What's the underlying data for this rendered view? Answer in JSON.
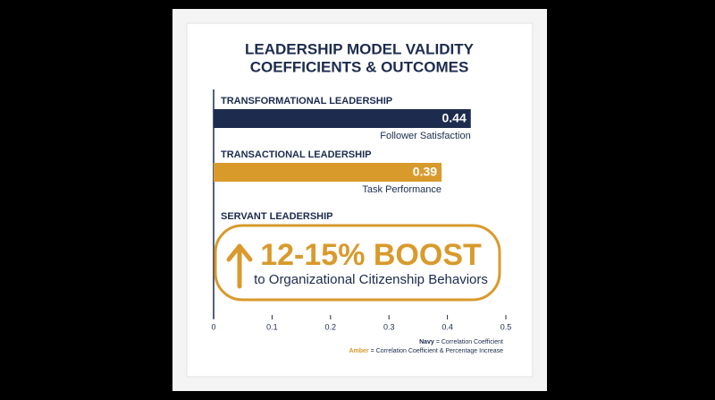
{
  "chart_data": {
    "type": "bar",
    "orientation": "horizontal",
    "title": [
      "LEADERSHIP MODEL VALIDITY",
      "COEFFICIENTS & OUTCOMES"
    ],
    "categories": [
      "TRANSFORMATIONAL LEADERSHIP",
      "TRANSACTIONAL LEADERSHIP",
      "SERVANT LEADERSHIP"
    ],
    "values": [
      0.44,
      0.39,
      null
    ],
    "outcomes": [
      "Follower Satisfaction",
      "Task Performance",
      null
    ],
    "colors": [
      "#1c2b4e",
      "#d99a2c",
      "#d99a2c"
    ],
    "annotation": {
      "headline": "12-15% BOOST",
      "text": "to Organizational Citizenship Behaviors"
    },
    "xlim": [
      0,
      0.5
    ],
    "xticks": [
      0,
      0.1,
      0.2,
      0.3,
      0.4,
      0.5
    ],
    "legend": [
      {
        "key": "Navy",
        "text": "= Correlation Coefficient",
        "color": "#1c2b4e"
      },
      {
        "key": "Amber",
        "text": "= Correlation Coefficient & Percentage Increase",
        "color": "#d99a2c"
      }
    ]
  }
}
